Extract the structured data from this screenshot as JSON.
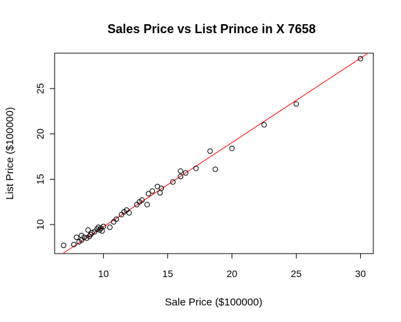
{
  "chart_data": {
    "type": "scatter",
    "title": "Sales Price vs List Prince in X 7658",
    "xlabel": "Sale Price ($100000)",
    "ylabel": "List Price ($100000)",
    "xlim": [
      6.2,
      31.0
    ],
    "ylim": [
      6.8,
      28.9
    ],
    "xticks": [
      10,
      15,
      20,
      25,
      30
    ],
    "yticks": [
      10,
      15,
      20,
      25
    ],
    "grid": false,
    "legend": "none",
    "point_color": "#000000",
    "fit_line_color": "#ff0000",
    "fit_line": {
      "slope": 0.93,
      "intercept": 0.45
    },
    "points": [
      {
        "x": 6.9,
        "y": 7.7
      },
      {
        "x": 7.7,
        "y": 7.8
      },
      {
        "x": 7.9,
        "y": 8.6
      },
      {
        "x": 8.1,
        "y": 8.1
      },
      {
        "x": 8.3,
        "y": 8.3
      },
      {
        "x": 8.3,
        "y": 8.8
      },
      {
        "x": 8.5,
        "y": 8.6
      },
      {
        "x": 8.7,
        "y": 8.5
      },
      {
        "x": 8.8,
        "y": 9.4
      },
      {
        "x": 8.9,
        "y": 8.7
      },
      {
        "x": 9.0,
        "y": 8.9
      },
      {
        "x": 9.1,
        "y": 9.1
      },
      {
        "x": 9.3,
        "y": 9.2
      },
      {
        "x": 9.5,
        "y": 9.5
      },
      {
        "x": 9.6,
        "y": 9.7
      },
      {
        "x": 9.7,
        "y": 9.4
      },
      {
        "x": 9.8,
        "y": 9.6
      },
      {
        "x": 9.9,
        "y": 9.3
      },
      {
        "x": 10.0,
        "y": 9.8
      },
      {
        "x": 10.5,
        "y": 9.7
      },
      {
        "x": 10.8,
        "y": 10.3
      },
      {
        "x": 11.0,
        "y": 10.6
      },
      {
        "x": 11.4,
        "y": 11.1
      },
      {
        "x": 11.6,
        "y": 11.4
      },
      {
        "x": 11.8,
        "y": 11.6
      },
      {
        "x": 12.0,
        "y": 11.3
      },
      {
        "x": 12.6,
        "y": 12.2
      },
      {
        "x": 12.8,
        "y": 12.5
      },
      {
        "x": 13.0,
        "y": 12.7
      },
      {
        "x": 13.4,
        "y": 12.2
      },
      {
        "x": 13.5,
        "y": 13.4
      },
      {
        "x": 13.8,
        "y": 13.7
      },
      {
        "x": 14.2,
        "y": 14.2
      },
      {
        "x": 14.4,
        "y": 13.5
      },
      {
        "x": 14.5,
        "y": 14.0
      },
      {
        "x": 15.4,
        "y": 14.7
      },
      {
        "x": 16.0,
        "y": 15.3
      },
      {
        "x": 16.0,
        "y": 15.9
      },
      {
        "x": 16.4,
        "y": 15.7
      },
      {
        "x": 17.2,
        "y": 16.2
      },
      {
        "x": 18.3,
        "y": 18.1
      },
      {
        "x": 18.7,
        "y": 16.1
      },
      {
        "x": 20.0,
        "y": 18.4
      },
      {
        "x": 22.5,
        "y": 21.0
      },
      {
        "x": 25.0,
        "y": 23.3
      },
      {
        "x": 30.0,
        "y": 28.3
      }
    ]
  }
}
